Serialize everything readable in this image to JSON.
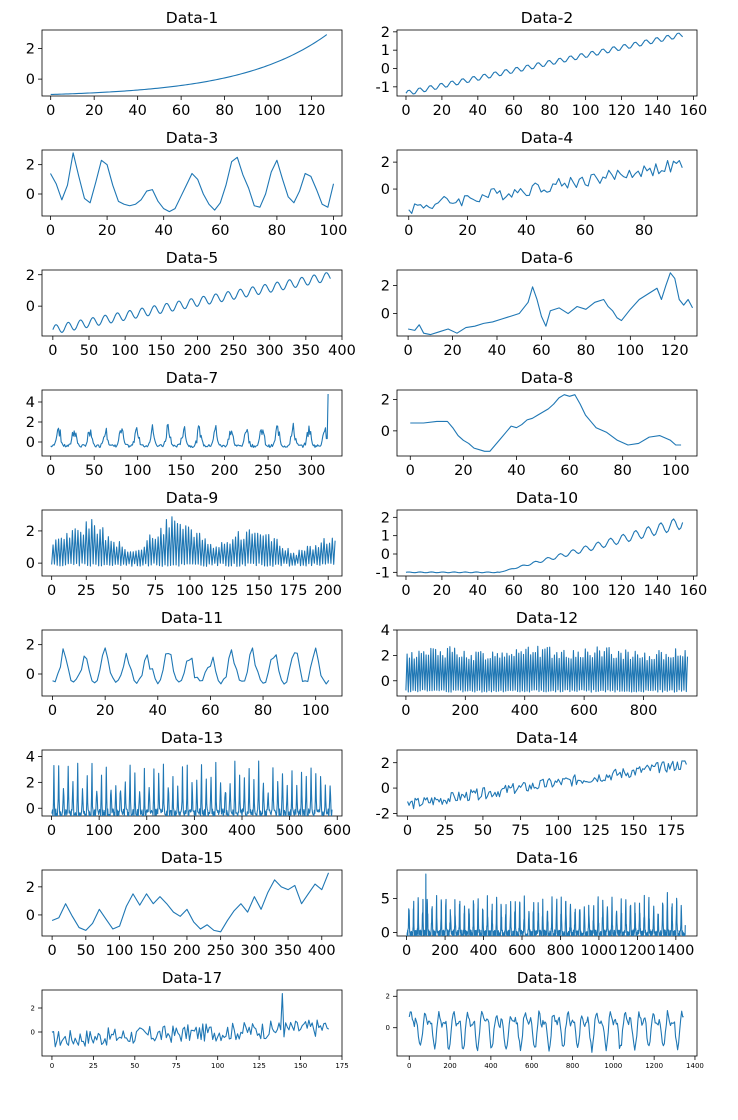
{
  "chart_data": [
    {
      "type": "line",
      "title": "Data-1",
      "xlim": [
        -4,
        134
      ],
      "ylim": [
        -1.1,
        3.2
      ],
      "xticks": [
        0,
        20,
        40,
        60,
        80,
        100,
        120
      ],
      "yticks": [
        0,
        2
      ],
      "gen": {
        "n": 128,
        "kind": "exp",
        "a": -1.0,
        "b": 2.9,
        "k": 3.2
      }
    },
    {
      "type": "line",
      "title": "Data-2",
      "xlim": [
        -5,
        162
      ],
      "ylim": [
        -1.5,
        2.1
      ],
      "xticks": [
        0,
        20,
        40,
        60,
        80,
        100,
        120,
        140,
        160
      ],
      "yticks": [
        -1,
        0,
        1,
        2
      ],
      "gen": {
        "n": 155,
        "kind": "trend",
        "a": -1.35,
        "b": 1.85,
        "season": 6,
        "amp": 0.14
      }
    },
    {
      "type": "line",
      "title": "Data-3",
      "xlim": [
        -3,
        103
      ],
      "ylim": [
        -1.5,
        3.0
      ],
      "xticks": [
        0,
        20,
        40,
        60,
        80,
        100
      ],
      "yticks": [
        0,
        2
      ],
      "points": [
        [
          0,
          1.4
        ],
        [
          2,
          0.7
        ],
        [
          4,
          -0.4
        ],
        [
          6,
          0.6
        ],
        [
          8,
          2.8
        ],
        [
          10,
          1.2
        ],
        [
          12,
          -0.3
        ],
        [
          14,
          -0.6
        ],
        [
          16,
          0.8
        ],
        [
          18,
          2.3
        ],
        [
          20,
          2.0
        ],
        [
          22,
          0.6
        ],
        [
          24,
          -0.5
        ],
        [
          26,
          -0.7
        ],
        [
          28,
          -0.8
        ],
        [
          30,
          -0.7
        ],
        [
          32,
          -0.4
        ],
        [
          34,
          0.2
        ],
        [
          36,
          0.3
        ],
        [
          38,
          -0.5
        ],
        [
          40,
          -1.0
        ],
        [
          42,
          -1.2
        ],
        [
          44,
          -1.0
        ],
        [
          46,
          -0.2
        ],
        [
          48,
          0.6
        ],
        [
          50,
          1.4
        ],
        [
          52,
          1.0
        ],
        [
          54,
          0.0
        ],
        [
          56,
          -0.7
        ],
        [
          58,
          -1.1
        ],
        [
          60,
          -0.6
        ],
        [
          62,
          0.6
        ],
        [
          64,
          2.2
        ],
        [
          66,
          2.5
        ],
        [
          68,
          1.3
        ],
        [
          70,
          0.4
        ],
        [
          72,
          -0.8
        ],
        [
          74,
          -0.9
        ],
        [
          76,
          0.0
        ],
        [
          78,
          1.5
        ],
        [
          80,
          2.3
        ],
        [
          82,
          1.0
        ],
        [
          84,
          -0.2
        ],
        [
          86,
          -0.6
        ],
        [
          88,
          0.2
        ],
        [
          90,
          1.4
        ],
        [
          92,
          1.2
        ],
        [
          94,
          0.3
        ],
        [
          96,
          -0.7
        ],
        [
          98,
          -0.9
        ],
        [
          100,
          0.7
        ]
      ]
    },
    {
      "type": "line",
      "title": "Data-4",
      "xlim": [
        -4,
        98
      ],
      "ylim": [
        -2.0,
        2.9
      ],
      "xticks": [
        0,
        20,
        40,
        60,
        80
      ],
      "yticks": [
        0,
        2
      ],
      "gen": {
        "n": 94,
        "kind": "trend",
        "a": -1.4,
        "b": 1.8,
        "noise": 0.5,
        "seed": 4
      }
    },
    {
      "type": "line",
      "title": "Data-5",
      "xlim": [
        -15,
        400
      ],
      "ylim": [
        -1.9,
        2.3
      ],
      "xticks": [
        0,
        50,
        100,
        150,
        200,
        250,
        300,
        350,
        400
      ],
      "yticks": [
        0,
        2
      ],
      "gen": {
        "n": 385,
        "kind": "trend",
        "a": -1.5,
        "b": 1.9,
        "season": 17,
        "amp": 0.28
      }
    },
    {
      "type": "line",
      "title": "Data-6",
      "xlim": [
        -5,
        130
      ],
      "ylim": [
        -1.6,
        3.1
      ],
      "xticks": [
        0,
        20,
        40,
        60,
        80,
        100,
        120
      ],
      "yticks": [
        0,
        2
      ],
      "points": [
        [
          0,
          -1.1
        ],
        [
          3,
          -1.2
        ],
        [
          5,
          -0.8
        ],
        [
          7,
          -1.4
        ],
        [
          10,
          -1.5
        ],
        [
          14,
          -1.3
        ],
        [
          18,
          -1.1
        ],
        [
          22,
          -1.4
        ],
        [
          26,
          -1.0
        ],
        [
          30,
          -0.9
        ],
        [
          34,
          -0.7
        ],
        [
          38,
          -0.6
        ],
        [
          42,
          -0.4
        ],
        [
          46,
          -0.2
        ],
        [
          50,
          0.0
        ],
        [
          54,
          0.8
        ],
        [
          56,
          1.9
        ],
        [
          58,
          1.0
        ],
        [
          60,
          -0.2
        ],
        [
          62,
          -0.9
        ],
        [
          64,
          0.2
        ],
        [
          68,
          0.4
        ],
        [
          72,
          0.0
        ],
        [
          76,
          0.5
        ],
        [
          80,
          0.3
        ],
        [
          84,
          0.8
        ],
        [
          88,
          1.0
        ],
        [
          90,
          0.5
        ],
        [
          92,
          0.2
        ],
        [
          94,
          -0.3
        ],
        [
          96,
          -0.5
        ],
        [
          100,
          0.3
        ],
        [
          104,
          1.0
        ],
        [
          108,
          1.4
        ],
        [
          112,
          1.8
        ],
        [
          114,
          1.0
        ],
        [
          116,
          2.0
        ],
        [
          118,
          2.9
        ],
        [
          120,
          2.5
        ],
        [
          122,
          1.0
        ],
        [
          124,
          0.6
        ],
        [
          126,
          1.0
        ],
        [
          128,
          0.4
        ]
      ]
    },
    {
      "type": "line",
      "title": "Data-7",
      "xlim": [
        -10,
        335
      ],
      "ylim": [
        -1.4,
        5.2
      ],
      "xticks": [
        0,
        50,
        100,
        150,
        200,
        250,
        300
      ],
      "yticks": [
        0,
        2,
        4
      ],
      "gen": {
        "n": 320,
        "kind": "spiky",
        "base": -0.4,
        "period": 18,
        "height": 1.7,
        "noise": 0.3,
        "seed": 7,
        "end": 4.8
      }
    },
    {
      "type": "line",
      "title": "Data-8",
      "xlim": [
        -5,
        108
      ],
      "ylim": [
        -1.6,
        2.6
      ],
      "xticks": [
        0,
        20,
        40,
        60,
        80,
        100
      ],
      "yticks": [
        0,
        2
      ],
      "points": [
        [
          0,
          0.5
        ],
        [
          5,
          0.5
        ],
        [
          10,
          0.6
        ],
        [
          14,
          0.6
        ],
        [
          16,
          0.2
        ],
        [
          18,
          -0.3
        ],
        [
          20,
          -0.6
        ],
        [
          22,
          -0.8
        ],
        [
          24,
          -1.1
        ],
        [
          26,
          -1.2
        ],
        [
          28,
          -1.3
        ],
        [
          30,
          -1.3
        ],
        [
          32,
          -0.9
        ],
        [
          34,
          -0.5
        ],
        [
          36,
          -0.1
        ],
        [
          38,
          0.3
        ],
        [
          40,
          0.2
        ],
        [
          42,
          0.4
        ],
        [
          44,
          0.7
        ],
        [
          46,
          0.8
        ],
        [
          48,
          1.0
        ],
        [
          50,
          1.2
        ],
        [
          52,
          1.4
        ],
        [
          54,
          1.7
        ],
        [
          56,
          2.1
        ],
        [
          58,
          2.3
        ],
        [
          60,
          2.2
        ],
        [
          62,
          2.3
        ],
        [
          64,
          1.7
        ],
        [
          66,
          1.0
        ],
        [
          68,
          0.6
        ],
        [
          70,
          0.2
        ],
        [
          74,
          -0.1
        ],
        [
          78,
          -0.6
        ],
        [
          82,
          -0.9
        ],
        [
          86,
          -0.8
        ],
        [
          90,
          -0.4
        ],
        [
          94,
          -0.3
        ],
        [
          98,
          -0.6
        ],
        [
          100,
          -0.9
        ],
        [
          102,
          -0.9
        ]
      ]
    },
    {
      "type": "line",
      "title": "Data-9",
      "xlim": [
        -7,
        210
      ],
      "ylim": [
        -0.8,
        3.3
      ],
      "xticks": [
        0,
        25,
        50,
        75,
        100,
        125,
        150,
        175,
        200
      ],
      "yticks": [
        0,
        2
      ],
      "gen": {
        "n": 206,
        "kind": "zig",
        "low": -0.1,
        "envelope": [
          1.3,
          2.4,
          0.6,
          2.8,
          1.0,
          2.2,
          0.6,
          1.6
        ],
        "seed": 9
      }
    },
    {
      "type": "line",
      "title": "Data-10",
      "xlim": [
        -5,
        162
      ],
      "ylim": [
        -1.2,
        2.4
      ],
      "xticks": [
        0,
        20,
        40,
        60,
        80,
        100,
        120,
        140,
        160
      ],
      "yticks": [
        -1,
        0,
        1,
        2
      ],
      "gen": {
        "n": 155,
        "kind": "hinge",
        "a": -1.0,
        "b": 2.2,
        "knee": 52,
        "season": 7,
        "amp": 0.35
      }
    },
    {
      "type": "line",
      "title": "Data-11",
      "xlim": [
        -4,
        110
      ],
      "ylim": [
        -1.5,
        3.0
      ],
      "xticks": [
        0,
        20,
        40,
        60,
        80,
        100
      ],
      "yticks": [
        0,
        2
      ],
      "gen": {
        "n": 106,
        "kind": "spiky",
        "base": -0.6,
        "period": 8,
        "height": 1.9,
        "noise": 0.25,
        "seed": 11,
        "smooth": 1
      }
    },
    {
      "type": "line",
      "title": "Data-12",
      "xlim": [
        -30,
        980
      ],
      "ylim": [
        -1.2,
        4.0
      ],
      "xticks": [
        0,
        200,
        400,
        600,
        800
      ],
      "yticks": [
        0,
        2,
        4
      ],
      "gen": {
        "n": 950,
        "kind": "zig",
        "low": -0.8,
        "envelope": [
          2.0,
          2.4,
          2.0,
          2.5,
          2.2,
          2.4,
          2.0,
          2.3
        ],
        "seed": 12,
        "step": 4
      }
    },
    {
      "type": "line",
      "title": "Data-13",
      "xlim": [
        -20,
        610
      ],
      "ylim": [
        -0.6,
        4.5
      ],
      "xticks": [
        0,
        100,
        200,
        300,
        400,
        500,
        600
      ],
      "yticks": [
        0,
        2,
        4
      ],
      "gen": {
        "n": 590,
        "kind": "spiky",
        "base": -0.4,
        "period": 10,
        "height": 2.8,
        "noise": 0.7,
        "seed": 13,
        "sharp": 1
      }
    },
    {
      "type": "line",
      "title": "Data-14",
      "xlim": [
        -7,
        192
      ],
      "ylim": [
        -2.2,
        3.0
      ],
      "xticks": [
        0,
        25,
        50,
        75,
        100,
        125,
        150,
        175
      ],
      "yticks": [
        -2,
        0,
        2
      ],
      "gen": {
        "n": 186,
        "kind": "trend",
        "a": -1.3,
        "b": 1.9,
        "noise": 0.45,
        "seed": 14
      }
    },
    {
      "type": "line",
      "title": "Data-15",
      "xlim": [
        -15,
        430
      ],
      "ylim": [
        -1.5,
        3.2
      ],
      "xticks": [
        0,
        50,
        100,
        150,
        200,
        250,
        300,
        350,
        400
      ],
      "yticks": [
        0,
        2
      ],
      "points": [
        [
          0,
          -0.4
        ],
        [
          10,
          -0.2
        ],
        [
          20,
          0.8
        ],
        [
          30,
          -0.1
        ],
        [
          40,
          -0.9
        ],
        [
          50,
          -1.1
        ],
        [
          60,
          -0.6
        ],
        [
          70,
          0.4
        ],
        [
          80,
          -0.3
        ],
        [
          90,
          -1.0
        ],
        [
          100,
          -0.8
        ],
        [
          110,
          0.6
        ],
        [
          120,
          1.5
        ],
        [
          130,
          0.7
        ],
        [
          140,
          1.5
        ],
        [
          150,
          0.8
        ],
        [
          160,
          1.3
        ],
        [
          170,
          0.8
        ],
        [
          180,
          0.2
        ],
        [
          190,
          -0.1
        ],
        [
          200,
          0.4
        ],
        [
          210,
          -0.5
        ],
        [
          220,
          -1.0
        ],
        [
          230,
          -0.7
        ],
        [
          240,
          -1.1
        ],
        [
          250,
          -1.2
        ],
        [
          260,
          -0.4
        ],
        [
          270,
          0.3
        ],
        [
          280,
          0.8
        ],
        [
          290,
          0.2
        ],
        [
          300,
          1.3
        ],
        [
          310,
          0.4
        ],
        [
          320,
          1.6
        ],
        [
          330,
          2.5
        ],
        [
          340,
          2.0
        ],
        [
          350,
          1.8
        ],
        [
          360,
          2.1
        ],
        [
          370,
          0.8
        ],
        [
          380,
          1.5
        ],
        [
          390,
          2.2
        ],
        [
          400,
          1.8
        ],
        [
          410,
          3.0
        ]
      ]
    },
    {
      "type": "line",
      "title": "Data-16",
      "xlim": [
        -50,
        1510
      ],
      "ylim": [
        -0.5,
        9.2
      ],
      "xticks": [
        0,
        200,
        400,
        600,
        800,
        1000,
        1200,
        1400
      ],
      "xtick_labels": [
        "0",
        "200",
        "400",
        "600",
        "800",
        "1000",
        "1200",
        "1400"
      ],
      "yticks": [
        0,
        5
      ],
      "gen": {
        "n": 1450,
        "kind": "spiky",
        "base": -0.2,
        "period": 24,
        "height": 4.2,
        "noise": 1.2,
        "seed": 16,
        "sharp": 1,
        "peak": [
          100,
          8.6
        ]
      }
    },
    {
      "type": "line",
      "title": "Data-17",
      "xlim": [
        -6,
        175
      ],
      "ylim": [
        -2.0,
        3.5
      ],
      "xticks": [
        0,
        25,
        50,
        75,
        100,
        125,
        150,
        175
      ],
      "yticks": [
        0,
        2
      ],
      "gen": {
        "n": 168,
        "kind": "trend",
        "a": -0.6,
        "b": 0.4,
        "noise": 0.75,
        "seed": 17,
        "peak": [
          139,
          3.2
        ]
      }
    },
    {
      "type": "line",
      "title": "Data-18",
      "xlim": [
        -60,
        1410
      ],
      "ylim": [
        -1.8,
        2.4
      ],
      "xticks": [
        0,
        200,
        400,
        600,
        800,
        1000,
        1200,
        1400
      ],
      "yticks": [
        0,
        2
      ],
      "gen": {
        "n": 1350,
        "kind": "wave",
        "period": 70,
        "amp": 1.6,
        "base": 0.0,
        "seed": 18,
        "step": 5
      }
    }
  ]
}
